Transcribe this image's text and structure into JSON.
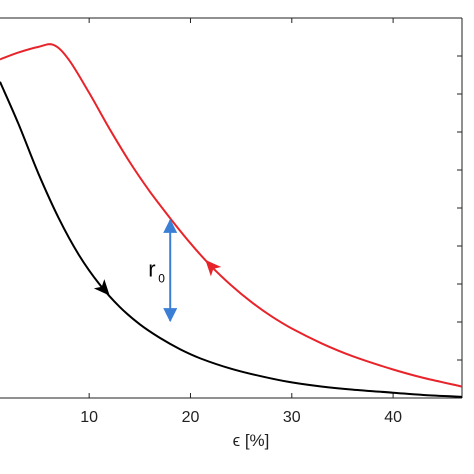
{
  "chart_data": {
    "type": "line",
    "title": "",
    "xlabel": "ϵ [%]",
    "ylabel": "",
    "xlim": [
      1.2,
      46.8
    ],
    "ylim": [
      0,
      1
    ],
    "x_ticks": [
      10,
      20,
      30,
      40
    ],
    "x_tick_labels": [
      "10",
      "20",
      "30",
      "40"
    ],
    "grid": false,
    "series": [
      {
        "color": "#e8242b",
        "direction": "decreasing-x",
        "x": [
          1.2,
          3.0,
          5.0,
          6.5,
          8.0,
          10.0,
          12.0,
          14.0,
          16.0,
          18.0,
          20.0,
          22.0,
          24.0,
          26.0,
          28.0,
          30.0,
          33.0,
          36.0,
          40.0,
          43.0,
          46.8
        ],
        "y": [
          0.891,
          0.909,
          0.924,
          0.929,
          0.89,
          0.803,
          0.709,
          0.621,
          0.543,
          0.473,
          0.407,
          0.348,
          0.297,
          0.253,
          0.215,
          0.183,
          0.143,
          0.11,
          0.075,
          0.053,
          0.03
        ]
      },
      {
        "color": "#000000",
        "direction": "increasing-x",
        "x": [
          1.2,
          3.0,
          5.0,
          7.0,
          9.0,
          11.0,
          13.0,
          15.0,
          17.0,
          19.0,
          21.0,
          24.0,
          27.0,
          30.0,
          33.0,
          36.0,
          40.0,
          43.0,
          46.8
        ],
        "y": [
          0.832,
          0.723,
          0.59,
          0.473,
          0.376,
          0.3,
          0.24,
          0.194,
          0.158,
          0.128,
          0.104,
          0.077,
          0.057,
          0.041,
          0.03,
          0.022,
          0.014,
          0.008,
          0.003
        ]
      }
    ],
    "annotations": [
      {
        "label": "r",
        "subscript": "0",
        "type": "double-arrow",
        "color": "#3a7fd5",
        "x": 18.0,
        "y_from": 0.473,
        "y_to": 0.198
      }
    ]
  }
}
